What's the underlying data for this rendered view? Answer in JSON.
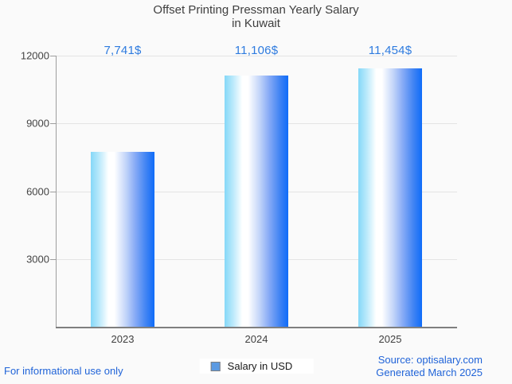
{
  "title": {
    "line1": "Offset Printing Pressman Yearly Salary",
    "line2": "in Kuwait"
  },
  "chart_data": {
    "type": "bar",
    "categories": [
      "2023",
      "2024",
      "2025"
    ],
    "values": [
      7741,
      11106,
      11454
    ],
    "value_labels": [
      "7,741$",
      "11,106$",
      "11,454$"
    ],
    "series_name": "Salary in USD",
    "title": "Offset Printing Pressman Yearly Salary in Kuwait",
    "xlabel": "",
    "ylabel": "",
    "ylim": [
      0,
      12000
    ],
    "yticks": [
      3000,
      6000,
      9000,
      12000
    ],
    "grid": true,
    "legend_position": "bottom"
  },
  "legend": {
    "label": "Salary in USD"
  },
  "footer": {
    "left": "For informational use only",
    "right_line1": "Source: optisalary.com",
    "right_line2": "Generated March 2025"
  },
  "colors": {
    "background": "#fafafa",
    "title_text": "#3f3f3f",
    "tick_text": "#444444",
    "value_label": "#2e7bdf",
    "footer_text": "#2164d8",
    "gridline": "#e4e4e4",
    "axis_line": "#9e9e9e",
    "baseline": "#7f7f7f",
    "legend_marker_fill": "#5b9ae2",
    "legend_marker_border": "#7d7d7d",
    "bar_gradient_colors": [
      "#85d8f8",
      "#b9e9fb",
      "#ffffff",
      "#ffffff",
      "#c3d5f9",
      "#86aaf6",
      "#3f83f3",
      "#0f6cf9"
    ],
    "bar_gradient_stops": [
      0,
      13,
      28,
      37,
      55,
      70,
      87,
      100
    ]
  }
}
